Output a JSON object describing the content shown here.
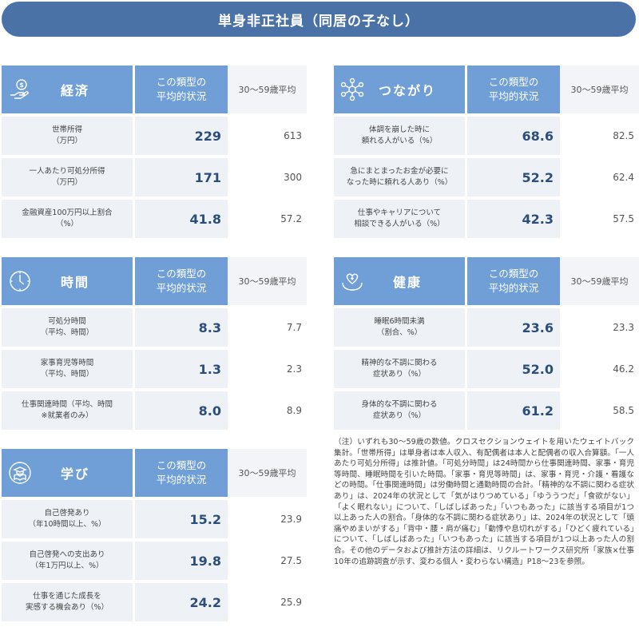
{
  "title": "単身非正社員（同居の子なし）",
  "header_type": "この類型の\n平均的状況",
  "header_avg": "30〜59歳平均",
  "panels": {
    "economy": {
      "name": "経済",
      "icon": "money-hand-icon",
      "rows": [
        {
          "label": "世帯所得\n（万円）",
          "value": "229",
          "avg": "613"
        },
        {
          "label": "一人あたり可処分所得\n（万円）",
          "value": "171",
          "avg": "300"
        },
        {
          "label": "金融資産100万円以上割合\n（%）",
          "value": "41.8",
          "avg": "57.2"
        }
      ]
    },
    "connection": {
      "name": "つながり",
      "icon": "network-icon",
      "rows": [
        {
          "label": "体調を崩した時に\n頼れる人がいる（%）",
          "value": "68.6",
          "avg": "82.5"
        },
        {
          "label": "急にまとまったお金が必要に\nなった時に頼れる人あり（%）",
          "value": "52.2",
          "avg": "62.4"
        },
        {
          "label": "仕事やキャリアについて\n相談できる人がいる（%）",
          "value": "42.3",
          "avg": "57.5"
        }
      ]
    },
    "time": {
      "name": "時間",
      "icon": "clock-icon",
      "rows": [
        {
          "label": "可処分時間\n（平均、時間）",
          "value": "8.3",
          "avg": "7.7"
        },
        {
          "label": "家事育児等時間\n（平均、時間）",
          "value": "1.3",
          "avg": "2.3"
        },
        {
          "label": "仕事関連時間（平均、時間\n※就業者のみ）",
          "value": "8.0",
          "avg": "8.9"
        }
      ]
    },
    "health": {
      "name": "健康",
      "icon": "heart-hands-icon",
      "rows": [
        {
          "label": "睡眠6時間未満\n（割合、%）",
          "value": "23.6",
          "avg": "23.3"
        },
        {
          "label": "精神的な不調に関わる\n症状あり（%）",
          "value": "52.0",
          "avg": "46.2"
        },
        {
          "label": "身体的な不調に関わる\n症状あり（%）",
          "value": "61.2",
          "avg": "58.5"
        }
      ]
    },
    "learning": {
      "name": "学び",
      "icon": "graduation-book-icon",
      "rows": [
        {
          "label": "自己啓発あり\n（年10時間以上、%）",
          "value": "15.2",
          "avg": "23.9"
        },
        {
          "label": "自己啓発への支出あり\n（年1万円以上、%）",
          "value": "19.8",
          "avg": "27.5"
        },
        {
          "label": "仕事を通じた成長を\n実感する機会あり（%）",
          "value": "24.2",
          "avg": "25.9"
        }
      ]
    }
  },
  "note": "（注）いずれも30〜59歳の数値。クロスセクションウェイトを用いたウェイトバック集計。「世帯所得」は単身者は本人収入、有配偶者は本人と配偶者の収入合算額。「一人あたり可処分所得」は推計値。「可処分時間」は24時間から仕事関連時間、家事・育児等時間、睡眠時間を引いた時間。「家事・育児等時間」は、家事・育児・介護・看護などの時間。「仕事関連時間」は労働時間と通勤時間の合計。「精神的な不調に関わる症状あり」は、2024年の状況として「気がはりつめている」「ゆううつだ」「食欲がない」「よく眠れない」について、「しばしばあった」「いつもあった」に該当する項目が1つ以上あった人の割合。「身体的な不調に関わる症状あり」は、2024年の状況として「頭痛やめまいがする」「背中・腰・肩が痛む」「動悸や息切れがする」「ひどく疲れている」について、「しばしばあった」「いつもあった」に該当する項目が1つ以上あった人の割合。その他のデータおよび推計方法の詳細は、リクルートワークス研究所「家族×仕事 10年の追跡調査が示す、変わる個人・変わらない構造」P18〜23を参照。"
}
